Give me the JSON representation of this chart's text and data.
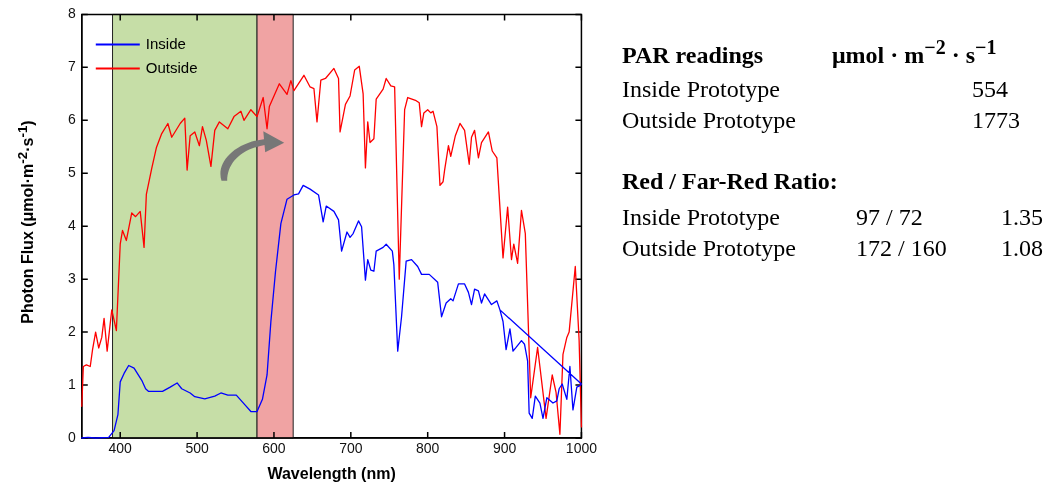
{
  "chart_data": {
    "type": "line",
    "xlabel": "Wavelength (nm)",
    "ylabel": "Photon Flux (μmol·m$^{-2}$·s$^{-1}$)",
    "xlim": [
      350,
      1000
    ],
    "xticks": [
      400,
      500,
      600,
      700,
      800,
      900,
      1000
    ],
    "ylim": [
      0,
      8
    ],
    "yticks": [
      0,
      1,
      2,
      3,
      4,
      5,
      6,
      7,
      8
    ],
    "grid": false,
    "legend": "top left",
    "marker": "none",
    "line_style": "solid",
    "bands": [
      {
        "axis": "x",
        "from": 390,
        "to": 578,
        "color": "#c6dea7"
      },
      {
        "axis": "x",
        "from": 578,
        "to": 625,
        "color": "#f0a3a3"
      }
    ],
    "series": [
      {
        "name": "Inside",
        "color": "#0000ff",
        "x": [
          350,
          358,
          368,
          385,
          392,
          397,
          400,
          405,
          411,
          418,
          428,
          433,
          437,
          455,
          465,
          474,
          480,
          491,
          497,
          510,
          523,
          531,
          540,
          551,
          562,
          570,
          578,
          585,
          591,
          596,
          602,
          609,
          617,
          626,
          632,
          638,
          647,
          658,
          664,
          668,
          678,
          684,
          688,
          695,
          699,
          703,
          710,
          714,
          719,
          722,
          726,
          730,
          733,
          742,
          746,
          754,
          756,
          761,
          766,
          772,
          779,
          787,
          792,
          802,
          813,
          818,
          824,
          830,
          833,
          840,
          848,
          853,
          857,
          861,
          866,
          870,
          874,
          883,
          890,
          894,
          898,
          902,
          907,
          911,
          915,
          922,
          926,
          930,
          932,
          936,
          940,
          946,
          950,
          955,
          963,
          968,
          971,
          975,
          981,
          985,
          989,
          994,
          998,
          1000,
          894
        ],
        "values": [
          0,
          0.01,
          0,
          0.01,
          0.14,
          0.44,
          1.06,
          1.22,
          1.37,
          1.32,
          1.09,
          0.93,
          0.88,
          0.88,
          0.96,
          1.04,
          0.93,
          0.85,
          0.78,
          0.74,
          0.79,
          0.85,
          0.81,
          0.81,
          0.63,
          0.5,
          0.5,
          0.73,
          1.19,
          2.2,
          3.14,
          4.05,
          4.51,
          4.59,
          4.61,
          4.77,
          4.7,
          4.59,
          4.08,
          4.38,
          4.28,
          4.12,
          3.53,
          3.89,
          3.79,
          3.86,
          4.1,
          3.99,
          2.98,
          3.37,
          3.17,
          3.15,
          3.53,
          3.6,
          3.66,
          3.53,
          3.27,
          1.64,
          2.29,
          3.34,
          3.37,
          3.24,
          3.09,
          3.09,
          2.94,
          2.29,
          2.55,
          2.63,
          2.59,
          2.91,
          2.91,
          2.75,
          2.52,
          2.81,
          2.78,
          2.55,
          2.72,
          2.52,
          2.59,
          2.42,
          2.2,
          1.67,
          2.06,
          1.64,
          1.71,
          1.84,
          1.77,
          1.45,
          0.47,
          0.37,
          0.79,
          0.66,
          0.37,
          0.76,
          0.66,
          0.7,
          0.93,
          1.02,
          0.73,
          1.35,
          0.53,
          0.96,
          0.99,
          1.02,
          2.42
        ]
      },
      {
        "name": "Outside",
        "color": "#ff0000",
        "x": [
          350,
          352,
          356,
          361,
          364,
          368,
          372,
          376,
          379,
          383,
          389,
          395,
          400,
          403,
          408,
          415,
          420,
          426,
          431,
          434,
          441,
          447,
          454,
          462,
          467,
          478,
          484,
          487,
          491,
          497,
          503,
          507,
          512,
          518,
          523,
          529,
          540,
          548,
          557,
          561,
          570,
          578,
          586,
          591,
          594,
          607,
          617,
          622,
          626,
          639,
          647,
          652,
          656,
          661,
          667,
          678,
          684,
          686,
          693,
          699,
          705,
          711,
          716,
          719,
          722,
          725,
          730,
          733,
          742,
          746,
          752,
          757,
          763,
          770,
          774,
          785,
          789,
          792,
          795,
          800,
          804,
          807,
          812,
          816,
          820,
          822,
          827,
          830,
          836,
          842,
          848,
          854,
          857,
          861,
          866,
          870,
          879,
          884,
          890,
          898,
          904,
          909,
          912,
          917,
          922,
          927,
          934,
          943,
          954,
          962,
          967,
          972,
          976,
          981,
          984,
          992,
          997,
          1000
        ],
        "values": [
          0.6,
          1.35,
          1.38,
          1.35,
          1.67,
          2.0,
          1.7,
          1.9,
          2.26,
          1.64,
          2.42,
          2.03,
          3.66,
          3.92,
          3.73,
          4.25,
          4.18,
          4.28,
          3.6,
          4.6,
          5.09,
          5.48,
          5.75,
          5.94,
          5.68,
          5.94,
          6.04,
          5.06,
          5.71,
          5.78,
          5.52,
          5.88,
          5.62,
          5.13,
          5.81,
          5.97,
          5.84,
          6.07,
          6.17,
          6.0,
          6.2,
          6.07,
          6.43,
          5.84,
          6.26,
          6.69,
          6.49,
          6.75,
          6.56,
          6.85,
          6.63,
          6.6,
          5.97,
          6.76,
          6.79,
          6.98,
          6.79,
          5.78,
          6.3,
          6.46,
          6.95,
          7.02,
          6.5,
          5.1,
          5.97,
          5.58,
          5.65,
          6.4,
          6.59,
          6.79,
          6.65,
          6.63,
          3.0,
          6.2,
          6.43,
          6.37,
          6.33,
          5.88,
          6.14,
          6.2,
          6.14,
          6.17,
          5.88,
          4.77,
          4.84,
          5.06,
          5.52,
          5.32,
          5.71,
          5.94,
          5.81,
          5.17,
          5.68,
          5.81,
          5.29,
          5.58,
          5.78,
          5.42,
          5.29,
          3.4,
          4.36,
          3.37,
          3.66,
          3.3,
          4.3,
          3.86,
          0.76,
          1.71,
          0.37,
          1.19,
          0.86,
          0.07,
          1.58,
          1.9,
          2.0,
          3.24,
          1.84,
          0.21
        ]
      }
    ],
    "annotations": [
      "PAR readings",
      "μmol · m$^{−2}$ · s$^{−1}$",
      "Inside Prototype",
      "554",
      "Outside Prototype",
      "1773",
      "Red / Far-Red Ratio:",
      "Inside Prototype",
      "97 / 72",
      "1.35",
      "Outside Prototype",
      "172 / 160",
      "1.08"
    ]
  }
}
